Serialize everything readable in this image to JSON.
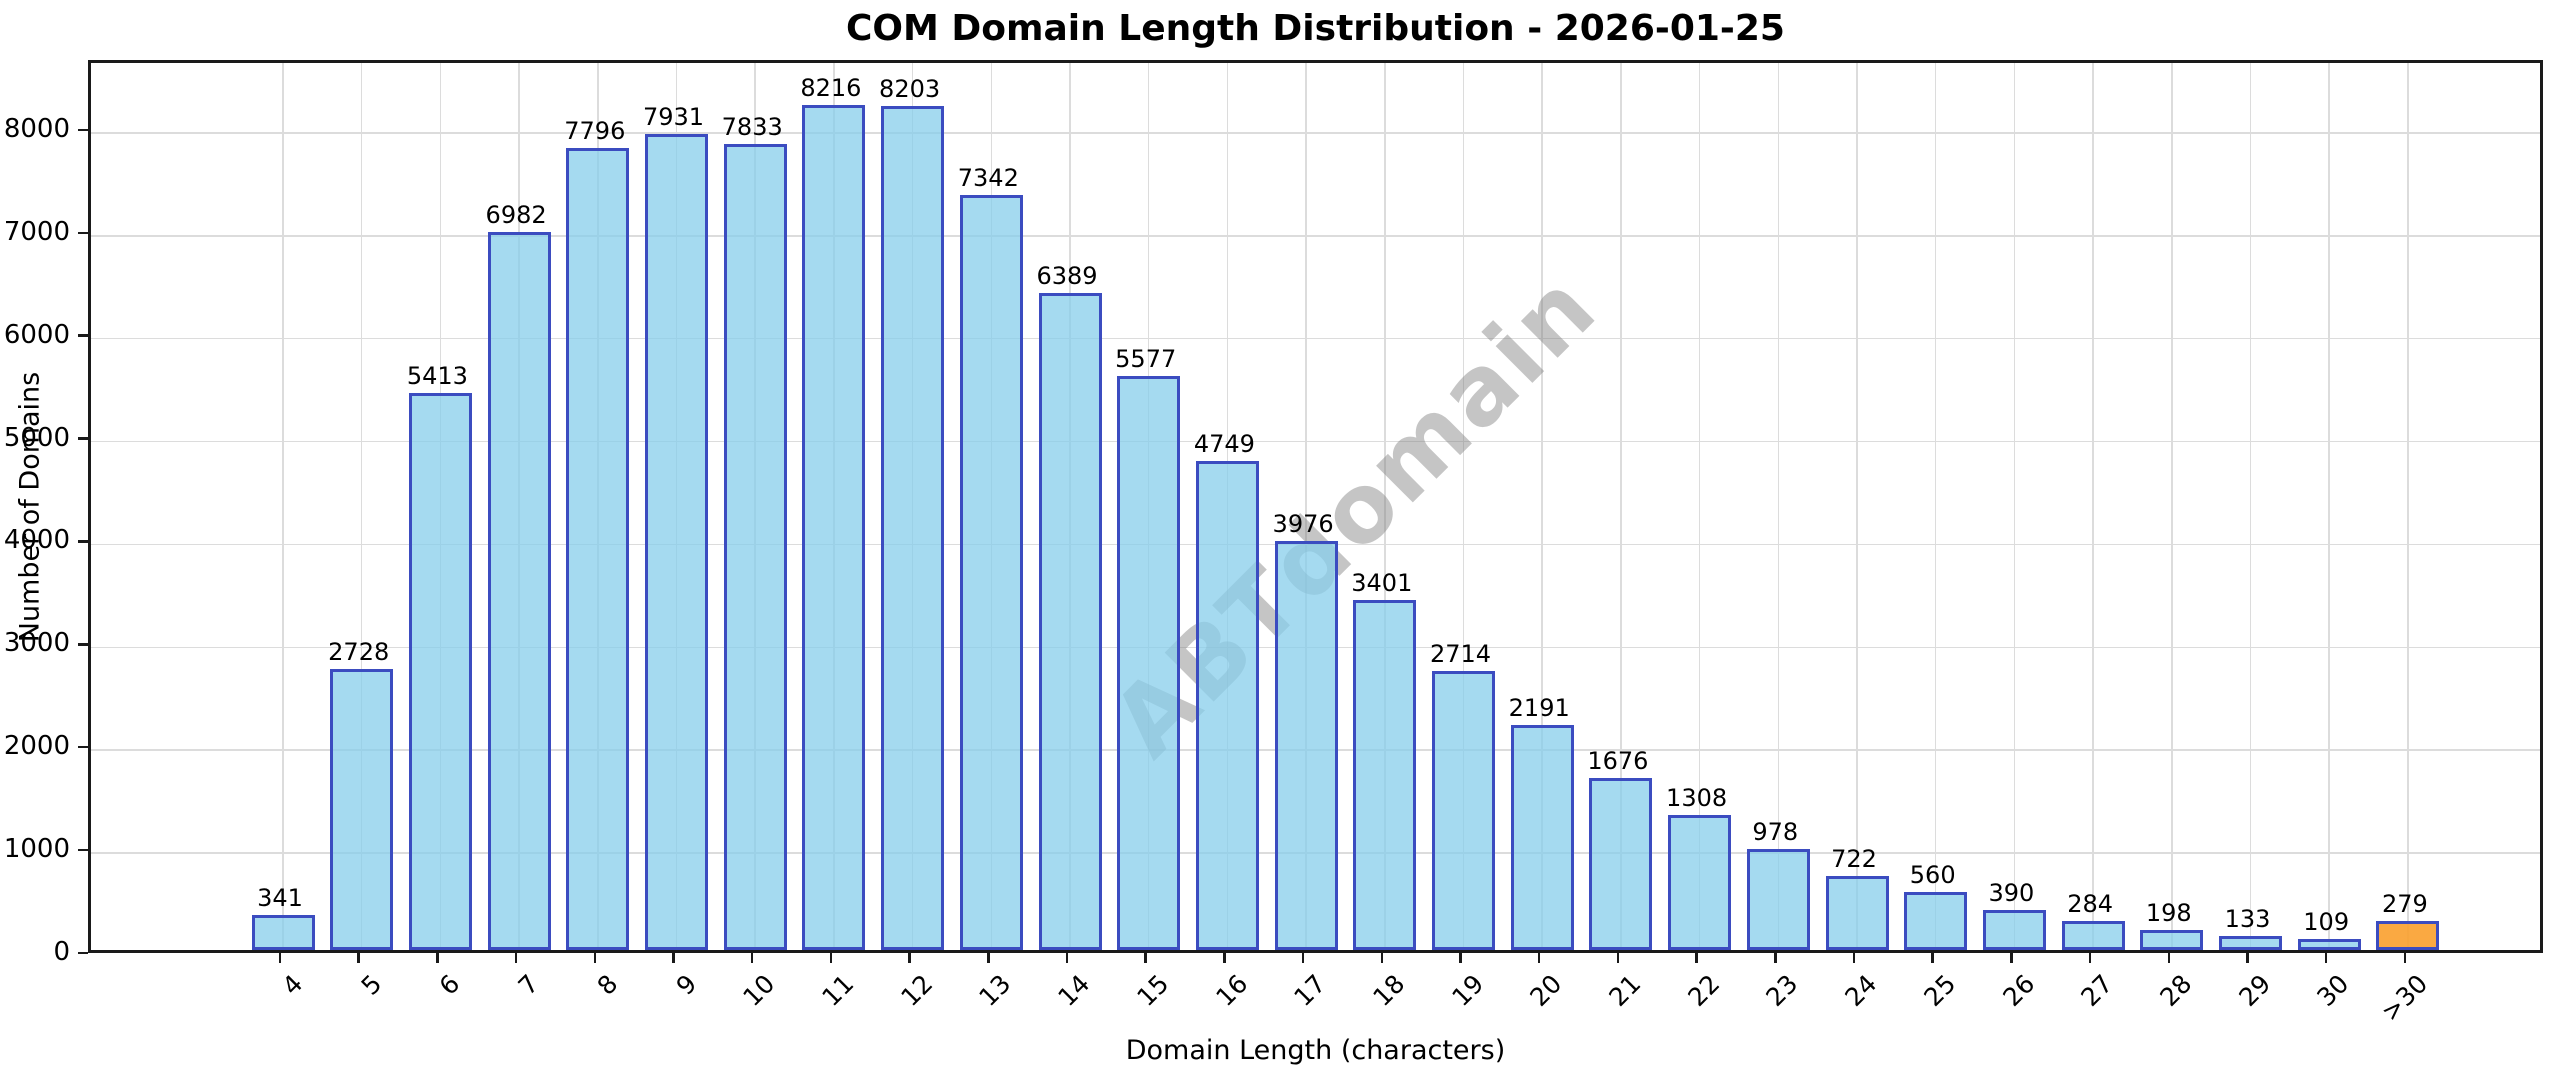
{
  "title": "COM Domain Length Distribution - 2026-01-25",
  "watermark_text": "ABTdomain",
  "chart_data": {
    "type": "bar",
    "title": "COM Domain Length Distribution - 2026-01-25",
    "xlabel": "Domain Length (characters)",
    "ylabel": "Number of Domains",
    "categories": [
      "4",
      "5",
      "6",
      "7",
      "8",
      "9",
      "10",
      "11",
      "12",
      "13",
      "14",
      "15",
      "16",
      "17",
      "18",
      "19",
      "20",
      "21",
      "22",
      "23",
      "24",
      "25",
      "26",
      "27",
      "28",
      "29",
      "30",
      ">30"
    ],
    "values": [
      341,
      2728,
      5413,
      6982,
      7796,
      7931,
      7833,
      8216,
      8203,
      7342,
      6389,
      5577,
      4749,
      3976,
      3401,
      2714,
      2191,
      1676,
      1308,
      978,
      722,
      560,
      390,
      284,
      198,
      133,
      109,
      279
    ],
    "value_labels_shown": true,
    "yticks": [
      0,
      1000,
      2000,
      3000,
      4000,
      5000,
      6000,
      7000,
      8000
    ],
    "ylim": [
      0,
      8680
    ],
    "grid": true,
    "legend": "none",
    "colors": {
      "bar_fill": "rgba(135,206,235,0.75)",
      "bar_edge": "#3b4cc0",
      "highlight_fill": "rgba(250,160,45,0.9)",
      "highlight_edge": "#3b4cc0",
      "grid_color": "#dcdcdc",
      "watermark_color": "rgba(127,127,127,0.45)"
    },
    "highlight_index": 27,
    "xtick_rotation_deg": 45
  }
}
